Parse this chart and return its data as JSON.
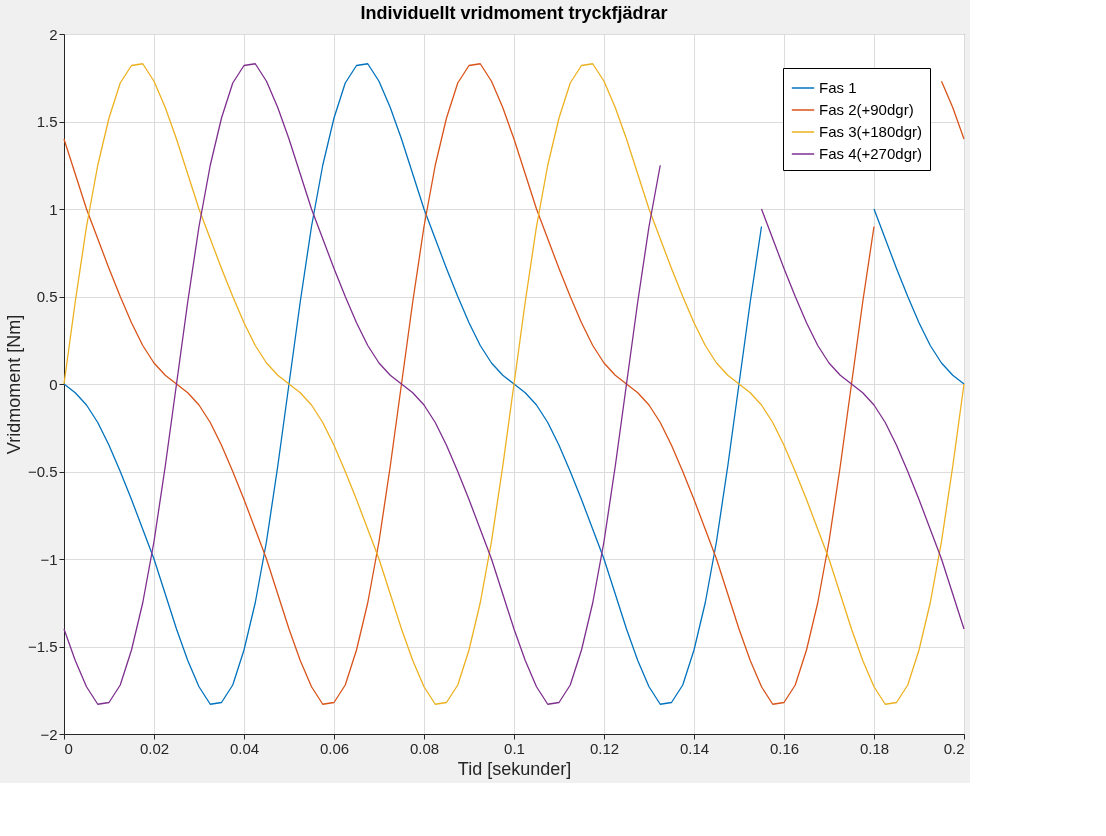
{
  "chart_data": {
    "type": "line",
    "title": "Individuellt vridmoment tryckfjädrar",
    "xlabel": "Tid [sekunder]",
    "ylabel": "Vridmoment [Nm]",
    "x": [
      0,
      0.0025,
      0.005,
      0.0075,
      0.01,
      0.0125,
      0.015,
      0.0175,
      0.02,
      0.0225,
      0.025,
      0.0275,
      0.03,
      0.0325,
      0.035,
      0.0375,
      0.04,
      0.0425,
      0.045,
      0.0475,
      0.05,
      0.0525,
      0.055,
      0.0575,
      0.06,
      0.0625,
      0.065,
      0.0675,
      0.07,
      0.0725,
      0.075,
      0.0775,
      0.08,
      0.0825,
      0.085,
      0.0875,
      0.09,
      0.0925,
      0.095,
      0.0975,
      0.1,
      0.1025,
      0.105,
      0.1075,
      0.11,
      0.1125,
      0.115,
      0.1175,
      0.12,
      0.1225,
      0.125,
      0.1275,
      0.13,
      0.1325,
      0.135,
      0.1375,
      0.14,
      0.1425,
      0.145,
      0.1475,
      0.15,
      0.1525,
      0.155,
      0.1575,
      0.16,
      0.1625,
      0.165,
      0.1675,
      0.17,
      0.1725,
      0.175,
      0.1775,
      0.18,
      0.1825,
      0.185,
      0.1875,
      0.19,
      0.1925,
      0.195,
      0.1975,
      0.2
    ],
    "series": [
      {
        "name": "Fas 1",
        "color": "#0072bd",
        "values": [
          0,
          -0.05,
          -0.12,
          -0.22,
          -0.35,
          -0.5,
          -0.66,
          -0.83,
          -1.0,
          -1.2,
          -1.4,
          -1.58,
          -1.73,
          -1.83,
          -1.82,
          -1.72,
          -1.52,
          -1.25,
          -0.9,
          -0.47,
          0,
          0.47,
          0.9,
          1.25,
          1.52,
          1.72,
          1.82,
          1.83,
          1.73,
          1.58,
          1.4,
          1.2,
          1.0,
          0.83,
          0.66,
          0.5,
          0.35,
          0.22,
          0.12,
          0.05,
          0,
          -0.05,
          -0.12,
          -0.22,
          -0.35,
          -0.5,
          -0.66,
          -0.83,
          -1.0,
          -1.2,
          -1.4,
          -1.58,
          -1.73,
          -1.83,
          -1.82,
          -1.72,
          -1.52,
          -1.25,
          -0.9,
          -0.47,
          0,
          0.47,
          0.9,
          null,
          null,
          null,
          null,
          null,
          null,
          null,
          null,
          null,
          1.0,
          0.83,
          0.66,
          0.5,
          0.35,
          0.22,
          0.12,
          0.05,
          0
        ]
      },
      {
        "name": "Fas 2(+90dgr)",
        "color": "#d95319",
        "values": [
          1.4,
          1.2,
          1.0,
          0.83,
          0.66,
          0.5,
          0.35,
          0.22,
          0.12,
          0.05,
          0,
          -0.05,
          -0.12,
          -0.22,
          -0.35,
          -0.5,
          -0.66,
          -0.83,
          -1.0,
          -1.2,
          -1.4,
          -1.58,
          -1.73,
          -1.83,
          -1.82,
          -1.72,
          -1.52,
          -1.25,
          -0.9,
          -0.47,
          0,
          0.47,
          0.9,
          1.25,
          1.52,
          1.72,
          1.82,
          1.83,
          1.73,
          1.58,
          1.4,
          1.2,
          1.0,
          0.83,
          0.66,
          0.5,
          0.35,
          0.22,
          0.12,
          0.05,
          0,
          -0.05,
          -0.12,
          -0.22,
          -0.35,
          -0.5,
          -0.66,
          -0.83,
          -1.0,
          -1.2,
          -1.4,
          -1.58,
          -1.73,
          -1.83,
          -1.82,
          -1.72,
          -1.52,
          -1.25,
          -0.9,
          -0.47,
          0,
          0.47,
          0.9,
          null,
          null,
          null,
          null,
          null,
          1.73,
          1.58,
          1.4
        ]
      },
      {
        "name": "Fas 3(+180dgr)",
        "color": "#edb120",
        "values": [
          0,
          0.47,
          0.9,
          1.25,
          1.52,
          1.72,
          1.82,
          1.83,
          1.73,
          1.58,
          1.4,
          1.2,
          1.0,
          0.83,
          0.66,
          0.5,
          0.35,
          0.22,
          0.12,
          0.05,
          0,
          -0.05,
          -0.12,
          -0.22,
          -0.35,
          -0.5,
          -0.66,
          -0.83,
          -1.0,
          -1.2,
          -1.4,
          -1.58,
          -1.73,
          -1.83,
          -1.82,
          -1.72,
          -1.52,
          -1.25,
          -0.9,
          -0.47,
          0,
          0.47,
          0.9,
          1.25,
          1.52,
          1.72,
          1.82,
          1.83,
          1.73,
          1.58,
          1.4,
          1.2,
          1.0,
          0.83,
          0.66,
          0.5,
          0.35,
          0.22,
          0.12,
          0.05,
          0,
          -0.05,
          -0.12,
          -0.22,
          -0.35,
          -0.5,
          -0.66,
          -0.83,
          -1.0,
          -1.2,
          -1.4,
          -1.58,
          -1.73,
          -1.83,
          -1.82,
          -1.72,
          -1.52,
          -1.25,
          -0.9,
          -0.47,
          0
        ]
      },
      {
        "name": "Fas 4(+270dgr)",
        "color": "#7e2f8e",
        "values": [
          -1.4,
          -1.58,
          -1.73,
          -1.83,
          -1.82,
          -1.72,
          -1.52,
          -1.25,
          -0.9,
          -0.47,
          0,
          0.47,
          0.9,
          1.25,
          1.52,
          1.72,
          1.82,
          1.83,
          1.73,
          1.58,
          1.4,
          1.2,
          1.0,
          0.83,
          0.66,
          0.5,
          0.35,
          0.22,
          0.12,
          0.05,
          0,
          -0.05,
          -0.12,
          -0.22,
          -0.35,
          -0.5,
          -0.66,
          -0.83,
          -1.0,
          -1.2,
          -1.4,
          -1.58,
          -1.73,
          -1.83,
          -1.82,
          -1.72,
          -1.52,
          -1.25,
          -0.9,
          -0.47,
          0,
          0.47,
          0.9,
          1.25,
          null,
          null,
          null,
          null,
          null,
          null,
          null,
          null,
          1.0,
          0.83,
          0.66,
          0.5,
          0.35,
          0.22,
          0.12,
          0.05,
          0,
          -0.05,
          -0.12,
          -0.22,
          -0.35,
          -0.5,
          -0.66,
          -0.83,
          -1.0,
          -1.2,
          -1.4
        ]
      }
    ],
    "xlim": [
      0,
      0.2
    ],
    "ylim": [
      -2,
      2
    ],
    "xticks": [
      0,
      0.02,
      0.04,
      0.06,
      0.08,
      0.1,
      0.12,
      0.14,
      0.16,
      0.18,
      0.2
    ],
    "yticks": [
      -2,
      -1.5,
      -1,
      -0.5,
      0,
      0.5,
      1,
      1.5,
      2
    ],
    "grid": true,
    "legend": "top right"
  }
}
